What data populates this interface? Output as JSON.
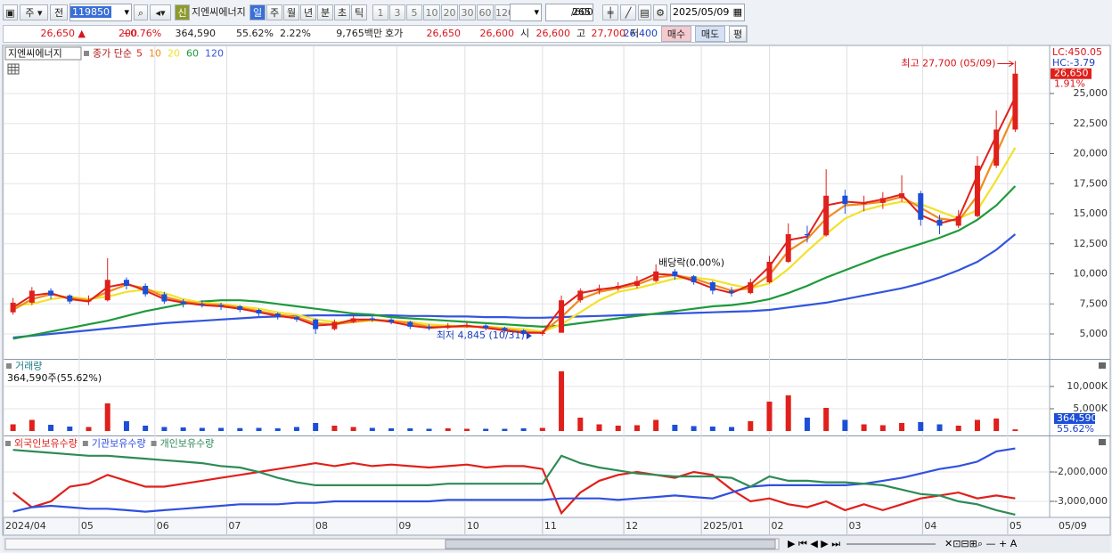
{
  "toolbar": {
    "market": "주",
    "prev": "전",
    "code": "119850",
    "new": "신",
    "name": "지엔씨에너지",
    "periods": [
      "일",
      "주",
      "월",
      "년",
      "분",
      "초",
      "틱"
    ],
    "intervals": [
      "1",
      "3",
      "5",
      "10",
      "20",
      "30",
      "60",
      "120"
    ],
    "count": "265",
    "max": "/600",
    "date": "2025/05/09"
  },
  "quote": {
    "price": "26,650 ▲",
    "change": "200",
    "rate": "+0.76%",
    "volume": "364,590",
    "volume_rate": "55.62%",
    "turnover": "2.22%",
    "amount": "9,765백만",
    "ask_label": "호가",
    "ask": "26,650",
    "bid": "26,600",
    "open_label": "시",
    "open": "26,600",
    "high_label": "고",
    "high": "27,700",
    "low_label": "저",
    "low": "26,400",
    "buy": "매수",
    "sell": "매도",
    "avg": "평"
  },
  "chart_data": [
    {
      "type": "candlestick",
      "title": "지엔씨에너지",
      "subtitle": "종가 단순",
      "categories": [
        null,
        null,
        null,
        null,
        null,
        null,
        null,
        null,
        null,
        null,
        null,
        null,
        null,
        null,
        null,
        null,
        null,
        null,
        null,
        null,
        null,
        null,
        null,
        null,
        null,
        null,
        null,
        null,
        null,
        null,
        null,
        null,
        null,
        null,
        null,
        null,
        null,
        null,
        null,
        null,
        null,
        null,
        null,
        null,
        null,
        null,
        null,
        null,
        null,
        null,
        null,
        null,
        null,
        null
      ],
      "open": [
        6800,
        7600,
        8600,
        8200,
        7700,
        7800,
        9500,
        9000,
        8300,
        7700,
        7500,
        7400,
        7300,
        7000,
        6700,
        6400,
        6200,
        5400,
        6000,
        6300,
        6200,
        6000,
        5600,
        5500,
        5700,
        5700,
        5500,
        5300,
        5000,
        5100,
        7800,
        8600,
        8800,
        9000,
        9400,
        10200,
        9800,
        9300,
        8600,
        8400,
        9300,
        11000,
        13300,
        13200,
        16500,
        15800,
        15900,
        16300,
        16700,
        14500,
        14000,
        14800,
        19000,
        22000
      ],
      "high": [
        8000,
        8900,
        8800,
        8300,
        8200,
        11300,
        9700,
        9200,
        8500,
        7900,
        7800,
        7600,
        7400,
        7100,
        6800,
        6500,
        6300,
        6200,
        6500,
        6500,
        6300,
        6100,
        5800,
        5900,
        6000,
        5800,
        5600,
        5400,
        5300,
        8200,
        8800,
        9100,
        9300,
        9800,
        10800,
        10400,
        9900,
        9400,
        8900,
        9600,
        11500,
        14200,
        14000,
        18700,
        17000,
        16500,
        16800,
        18200,
        16900,
        14900,
        15300,
        19800,
        23600,
        27700
      ],
      "low": [
        6600,
        7400,
        7900,
        7500,
        7400,
        7700,
        8700,
        8100,
        7500,
        7200,
        7200,
        7000,
        6800,
        6500,
        6200,
        6000,
        5000,
        5300,
        5900,
        6000,
        5800,
        5400,
        5300,
        5400,
        5500,
        5300,
        5100,
        4900,
        4845,
        5100,
        7600,
        8300,
        8600,
        8800,
        9300,
        9500,
        9100,
        8300,
        8100,
        8300,
        9200,
        10900,
        12600,
        13100,
        15000,
        15200,
        15400,
        16000,
        14000,
        13300,
        13800,
        14700,
        18800,
        21800
      ],
      "close": [
        7600,
        8600,
        8200,
        7700,
        7800,
        9500,
        9000,
        8300,
        7700,
        7500,
        7400,
        7300,
        7000,
        6700,
        6400,
        6200,
        5400,
        6000,
        6300,
        6200,
        6000,
        5600,
        5500,
        5700,
        5700,
        5500,
        5300,
        5000,
        5100,
        7800,
        8600,
        8800,
        9000,
        9400,
        10200,
        9800,
        9300,
        8600,
        8400,
        9300,
        11000,
        13300,
        13200,
        16500,
        15800,
        15900,
        16300,
        16700,
        14500,
        14000,
        14800,
        19000,
        22000,
        26650
      ],
      "up_color": "#e0201b",
      "down_color": "#1c4fd6",
      "series": [
        {
          "name": "5",
          "color": "#e0201b",
          "values": [
            7200,
            8200,
            8400,
            7900,
            7700,
            8900,
            9200,
            8600,
            7900,
            7600,
            7400,
            7300,
            7100,
            6800,
            6500,
            6300,
            5700,
            5800,
            6200,
            6200,
            6000,
            5700,
            5500,
            5600,
            5700,
            5500,
            5300,
            5100,
            5100,
            7200,
            8400,
            8700,
            8900,
            9300,
            10000,
            9900,
            9400,
            8800,
            8400,
            9100,
            10600,
            12800,
            13100,
            15700,
            16000,
            15900,
            16200,
            16600,
            14900,
            14200,
            14600,
            18200,
            21500,
            24700
          ]
        },
        {
          "name": "10",
          "color": "#f08c1e",
          "values": [
            7000,
            7900,
            8300,
            8000,
            7800,
            8500,
            9100,
            8800,
            8100,
            7700,
            7500,
            7400,
            7200,
            6900,
            6600,
            6400,
            5900,
            5800,
            6000,
            6200,
            6100,
            5900,
            5600,
            5600,
            5600,
            5600,
            5400,
            5200,
            5100,
            6400,
            7900,
            8500,
            8800,
            9100,
            9700,
            9900,
            9600,
            9100,
            8600,
            8800,
            9900,
            11900,
            12900,
            14600,
            15700,
            15800,
            16000,
            16400,
            15500,
            14600,
            14400,
            16500,
            20000,
            23500
          ]
        },
        {
          "name": "20",
          "color": "#f2e22a",
          "values": [
            7400,
            7500,
            7900,
            8100,
            7900,
            8100,
            8500,
            8700,
            8400,
            7900,
            7600,
            7500,
            7300,
            7100,
            6800,
            6600,
            6200,
            6000,
            6000,
            6100,
            6100,
            6000,
            5800,
            5700,
            5600,
            5600,
            5500,
            5400,
            5200,
            5800,
            6800,
            7800,
            8500,
            8800,
            9200,
            9600,
            9700,
            9500,
            9100,
            8800,
            9200,
            10400,
            11900,
            13300,
            14600,
            15300,
            15700,
            16000,
            15800,
            15200,
            14600,
            15300,
            17800,
            20500
          ]
        },
        {
          "name": "60",
          "color": "#1e9a3a",
          "values": [
            4600,
            4900,
            5200,
            5500,
            5800,
            6100,
            6500,
            6900,
            7200,
            7500,
            7700,
            7800,
            7800,
            7700,
            7500,
            7300,
            7100,
            6900,
            6700,
            6600,
            6400,
            6300,
            6200,
            6100,
            6000,
            5900,
            5800,
            5700,
            5600,
            5700,
            5900,
            6100,
            6300,
            6500,
            6700,
            6900,
            7100,
            7300,
            7400,
            7600,
            7900,
            8400,
            9000,
            9700,
            10300,
            10900,
            11500,
            12000,
            12500,
            13000,
            13600,
            14500,
            15700,
            17300
          ]
        },
        {
          "name": "120",
          "color": "#3355dd",
          "values": [
            4700,
            4850,
            5000,
            5150,
            5300,
            5450,
            5600,
            5750,
            5900,
            6000,
            6100,
            6200,
            6300,
            6400,
            6450,
            6500,
            6550,
            6550,
            6550,
            6550,
            6550,
            6500,
            6500,
            6450,
            6450,
            6400,
            6400,
            6350,
            6350,
            6400,
            6450,
            6500,
            6550,
            6600,
            6650,
            6700,
            6750,
            6800,
            6850,
            6900,
            7000,
            7200,
            7400,
            7600,
            7900,
            8200,
            8500,
            8800,
            9200,
            9700,
            10300,
            11000,
            12000,
            13300
          ]
        }
      ],
      "ylim": [
        2926,
        28926
      ],
      "yticks": [
        {
          "value": 5000,
          "label": "5,000"
        },
        {
          "value": 7500,
          "label": "7,500"
        },
        {
          "value": 10000,
          "label": "10,000"
        },
        {
          "value": 12500,
          "label": "12,500"
        },
        {
          "value": 15000,
          "label": "15,000"
        },
        {
          "value": 17500,
          "label": "17,500"
        },
        {
          "value": 20000,
          "label": "20,000"
        },
        {
          "value": 22500,
          "label": "22,500"
        },
        {
          "value": 25000,
          "label": "25,000"
        }
      ],
      "xticks": [
        {
          "value": 0,
          "label": "2024/04"
        },
        {
          "value": 4,
          "label": "05"
        },
        {
          "value": 8,
          "label": "06"
        },
        {
          "value": 11.8,
          "label": "07"
        },
        {
          "value": 16.4,
          "label": "08"
        },
        {
          "value": 20.8,
          "label": "09"
        },
        {
          "value": 24.4,
          "label": "10"
        },
        {
          "value": 28.5,
          "label": "11"
        },
        {
          "value": 32.8,
          "label": "12"
        },
        {
          "value": 36.9,
          "label": "2025/01"
        },
        {
          "value": 40.5,
          "label": "02"
        },
        {
          "value": 44.6,
          "label": "03"
        },
        {
          "value": 48.6,
          "label": "04"
        },
        {
          "value": 53.1,
          "label": "05"
        }
      ],
      "x_end_label": "05/09",
      "annotations": {
        "high": "최고 27,700 (05/09)",
        "low": "최저 4,845 (10/31)",
        "dividend": "배당락(0.00%)"
      },
      "right_labels": {
        "lc": "LC:450.05",
        "hc": "HC:-3.79",
        "last": "26,650",
        "rate": "1.91%"
      }
    },
    {
      "type": "bar",
      "title": "거래량",
      "subtitle": "364,590주(55.62%)",
      "values": [
        1500,
        2500,
        1400,
        1000,
        900,
        6200,
        2200,
        1200,
        900,
        800,
        700,
        700,
        650,
        700,
        600,
        900,
        1800,
        1200,
        900,
        700,
        600,
        600,
        500,
        600,
        500,
        500,
        500,
        600,
        700,
        13400,
        3000,
        1500,
        1200,
        1300,
        2500,
        1400,
        1100,
        1000,
        900,
        2200,
        6600,
        8000,
        3000,
        5200,
        2500,
        1500,
        1300,
        1800,
        2000,
        1500,
        1200,
        2500,
        2800,
        364.59
      ],
      "value_labels": {
        "53": "364,590"
      },
      "rate": "55.62%",
      "ylim": [
        -800,
        16000
      ],
      "yticks": [
        {
          "value": 5000,
          "label": "5,000K"
        },
        {
          "value": 10000,
          "label": "10,000K"
        }
      ]
    },
    {
      "type": "line",
      "series": [
        {
          "name": "외국인보유수량",
          "color": "#e0201b",
          "values": [
            -2700000,
            -3200000,
            -3000000,
            -2500000,
            -2400000,
            -2100000,
            -2300000,
            -2500000,
            -2500000,
            -2400000,
            -2300000,
            -2200000,
            -2100000,
            -2000000,
            -1900000,
            -1800000,
            -1700000,
            -1800000,
            -1700000,
            -1800000,
            -1750000,
            -1800000,
            -1850000,
            -1800000,
            -1750000,
            -1850000,
            -1800000,
            -1800000,
            -1900000,
            -3400000,
            -2700000,
            -2300000,
            -2100000,
            -2000000,
            -2100000,
            -2200000,
            -2000000,
            -2100000,
            -2600000,
            -3000000,
            -2900000,
            -3100000,
            -3200000,
            -3000000,
            -3300000,
            -3100000,
            -3300000,
            -3100000,
            -2900000,
            -2800000,
            -2700000,
            -2900000,
            -2800000,
            -2900000
          ]
        },
        {
          "name": "기관보유수량",
          "color": "#3050e0",
          "values": [
            -3350000,
            -3200000,
            -3150000,
            -3200000,
            -3250000,
            -3250000,
            -3300000,
            -3350000,
            -3300000,
            -3250000,
            -3200000,
            -3150000,
            -3100000,
            -3100000,
            -3100000,
            -3050000,
            -3050000,
            -3000000,
            -3000000,
            -3000000,
            -3000000,
            -3000000,
            -3000000,
            -2950000,
            -2950000,
            -2950000,
            -2950000,
            -2950000,
            -2950000,
            -2900000,
            -2900000,
            -2900000,
            -2950000,
            -2900000,
            -2850000,
            -2800000,
            -2850000,
            -2900000,
            -2700000,
            -2500000,
            -2450000,
            -2450000,
            -2450000,
            -2450000,
            -2450000,
            -2400000,
            -2300000,
            -2200000,
            -2050000,
            -1900000,
            -1800000,
            -1650000,
            -1300000,
            -1200000
          ]
        },
        {
          "name": "개인보유수량",
          "color": "#2e8b57",
          "values": [
            -1250000,
            -1300000,
            -1350000,
            -1400000,
            -1450000,
            -1450000,
            -1500000,
            -1550000,
            -1600000,
            -1650000,
            -1700000,
            -1800000,
            -1850000,
            -2000000,
            -2200000,
            -2350000,
            -2450000,
            -2450000,
            -2450000,
            -2450000,
            -2450000,
            -2450000,
            -2450000,
            -2400000,
            -2400000,
            -2400000,
            -2400000,
            -2400000,
            -2400000,
            -1450000,
            -1700000,
            -1850000,
            -1950000,
            -2050000,
            -2100000,
            -2150000,
            -2150000,
            -2150000,
            -2200000,
            -2500000,
            -2150000,
            -2300000,
            -2300000,
            -2350000,
            -2350000,
            -2400000,
            -2450000,
            -2600000,
            -2750000,
            -2800000,
            -3000000,
            -3100000,
            -3300000,
            -3450000
          ]
        }
      ],
      "ylim": [
        -3515000,
        -788000
      ],
      "yticks": [
        {
          "value": -3000000,
          "label": "-3,000,000"
        },
        {
          "value": -2000000,
          "label": "-2,000,000"
        }
      ]
    }
  ]
}
